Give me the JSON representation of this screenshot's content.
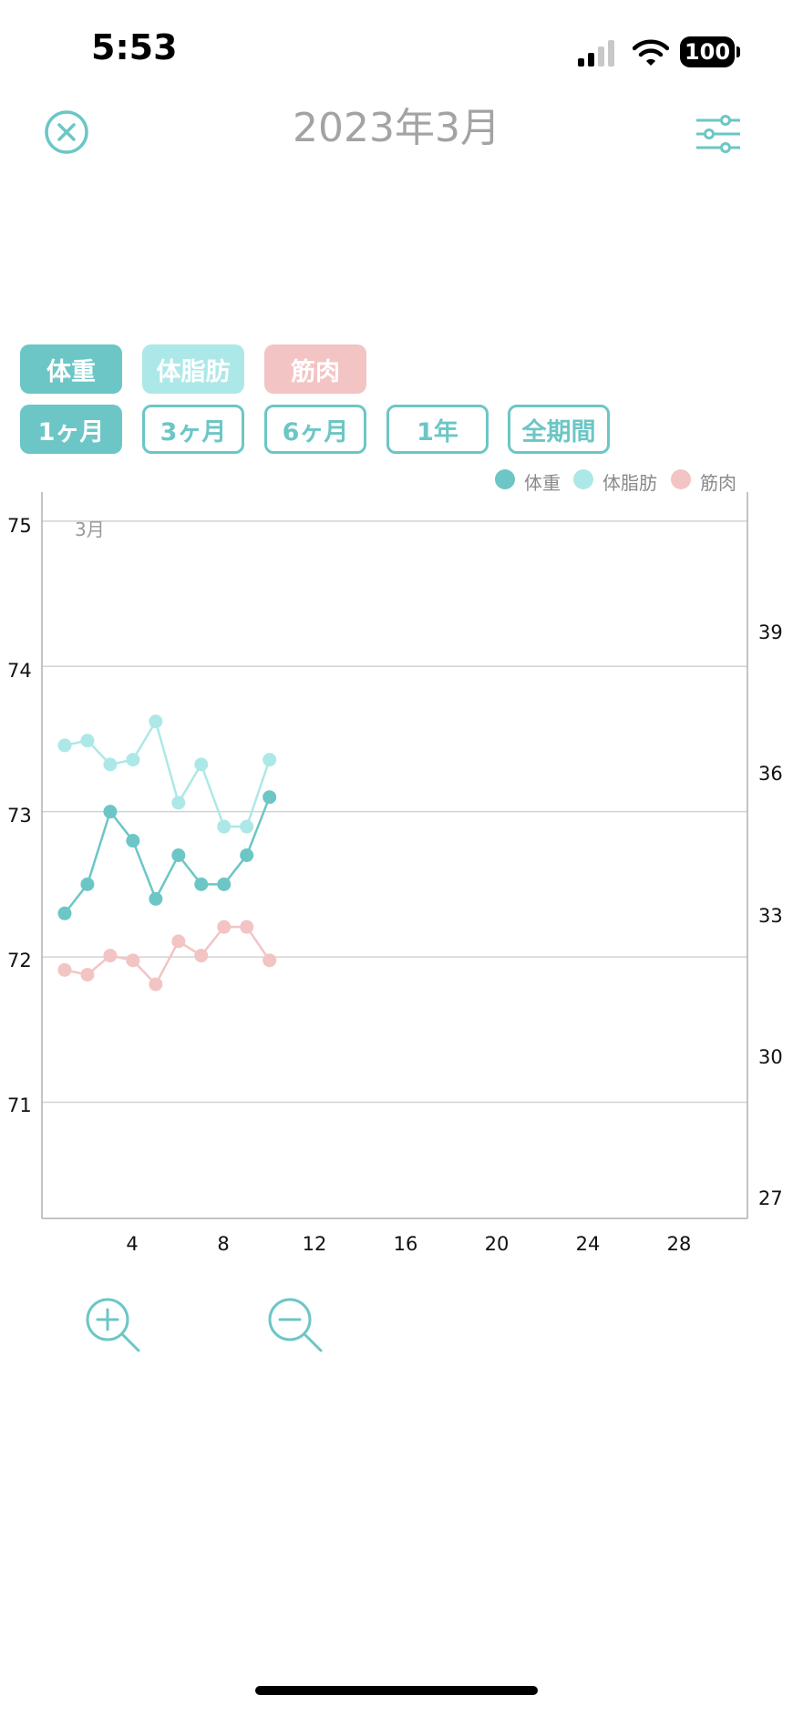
{
  "status_bar": {
    "time": "5:53",
    "battery": "100"
  },
  "header": {
    "title": "2023年3月",
    "close_icon": "close-circle-icon",
    "filter_icon": "sliders-icon"
  },
  "metric_toggles": [
    {
      "label": "体重",
      "color": "#6cc6c6"
    },
    {
      "label": "体脂肪",
      "color": "#ade8e8"
    },
    {
      "label": "筋肉",
      "color": "#f3c4c4"
    }
  ],
  "period_tabs": [
    {
      "label": "1ヶ月",
      "selected": true
    },
    {
      "label": "3ヶ月",
      "selected": false
    },
    {
      "label": "6ヶ月",
      "selected": false
    },
    {
      "label": "1年",
      "selected": false
    },
    {
      "label": "全期間",
      "selected": false
    }
  ],
  "legend": [
    {
      "label": "体重",
      "color": "#6cc6c6"
    },
    {
      "label": "体脂肪",
      "color": "#ade8e8"
    },
    {
      "label": "筋肉",
      "color": "#f3c4c4"
    }
  ],
  "chart_data": {
    "type": "line",
    "month_label": "3月",
    "x": [
      1,
      2,
      3,
      4,
      5,
      6,
      7,
      8,
      9,
      10
    ],
    "x_ticks": [
      "4",
      "8",
      "12",
      "16",
      "20",
      "24",
      "28"
    ],
    "xlim": [
      0,
      31
    ],
    "y_left_ticks": [
      "75",
      "74",
      "73",
      "72",
      "71"
    ],
    "y_left_lim": [
      70.2,
      75.2
    ],
    "y_right_ticks": [
      "39",
      "36",
      "33",
      "30",
      "27"
    ],
    "y_right_lim": [
      26.6,
      41.8
    ],
    "grid": true,
    "legend_position": "top-right",
    "series": [
      {
        "name": "体重",
        "axis": "left",
        "color": "#6cc6c6",
        "values": [
          72.3,
          72.5,
          73.0,
          72.8,
          72.4,
          72.7,
          72.5,
          72.5,
          72.7,
          73.1
        ]
      },
      {
        "name": "体脂肪",
        "axis": "right",
        "color": "#ade8e8",
        "values": [
          36.5,
          36.6,
          36.1,
          36.2,
          37.0,
          35.3,
          36.1,
          34.8,
          34.8,
          36.2
        ]
      },
      {
        "name": "筋肉",
        "axis": "right",
        "color": "#f3c4c4",
        "values": [
          31.8,
          31.7,
          32.1,
          32.0,
          31.5,
          32.4,
          32.1,
          32.7,
          32.7,
          32.0
        ]
      }
    ]
  },
  "zoom": {
    "zoom_in_icon": "zoom-in-icon",
    "zoom_out_icon": "zoom-out-icon"
  }
}
